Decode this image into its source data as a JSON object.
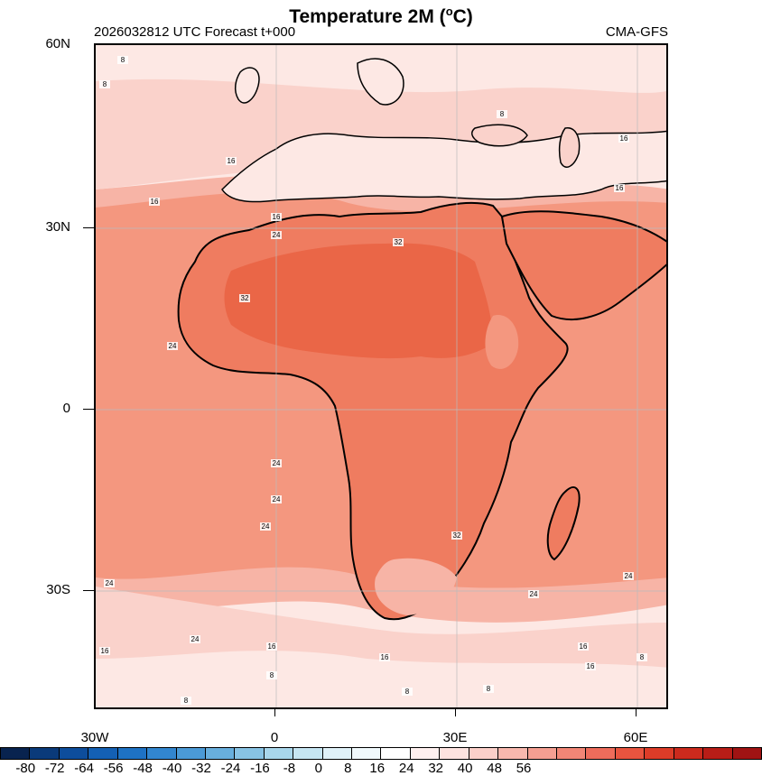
{
  "title": "Temperature  2M (",
  "title_unit": "o",
  "title_end": "C)",
  "subtitle_left": "2026032812 UTC Forecast t+000",
  "subtitle_right": "CMA-GFS",
  "lat_labels": [
    "60N",
    "30N",
    "0",
    "30S"
  ],
  "lon_labels": [
    "30W",
    "0",
    "30E",
    "60E"
  ],
  "colorbar": {
    "labels": [
      "-80",
      "-72",
      "-64",
      "-56",
      "-48",
      "-40",
      "-32",
      "-24",
      "-16",
      "-8",
      "0",
      "8",
      "16",
      "24",
      "32",
      "40",
      "48",
      "56"
    ],
    "colors": [
      "#08234f",
      "#0a3a7a",
      "#0d4d9c",
      "#1460b4",
      "#1e72c4",
      "#3286cf",
      "#4b9ad6",
      "#68afdd",
      "#88c3e4",
      "#a9d6eb",
      "#c6e5f2",
      "#dff1f8",
      "#f0f9fc",
      "#ffffff",
      "#fff0ef",
      "#fde2df",
      "#fbcfc9",
      "#f8b8ae",
      "#f59f92",
      "#f28676",
      "#ee6c5b",
      "#e8543f",
      "#dd3c28",
      "#cc2a1d",
      "#b81d17",
      "#a01313"
    ]
  },
  "contour_labels": [
    "8",
    "8",
    "16",
    "16",
    "16",
    "24",
    "32",
    "32",
    "24",
    "24",
    "24",
    "24",
    "24",
    "32",
    "24",
    "24",
    "24",
    "16",
    "16",
    "16",
    "16",
    "8",
    "8",
    "8",
    "8",
    "8",
    "16",
    "8",
    "16",
    "16"
  ],
  "legend_colors": {
    "t8": "#fde8e4",
    "t16": "#fad2cb",
    "t24": "#f7b4a6",
    "t28": "#f4977f",
    "t32": "#ef7c60",
    "t36": "#ea6647",
    "land_line": "#000000"
  }
}
